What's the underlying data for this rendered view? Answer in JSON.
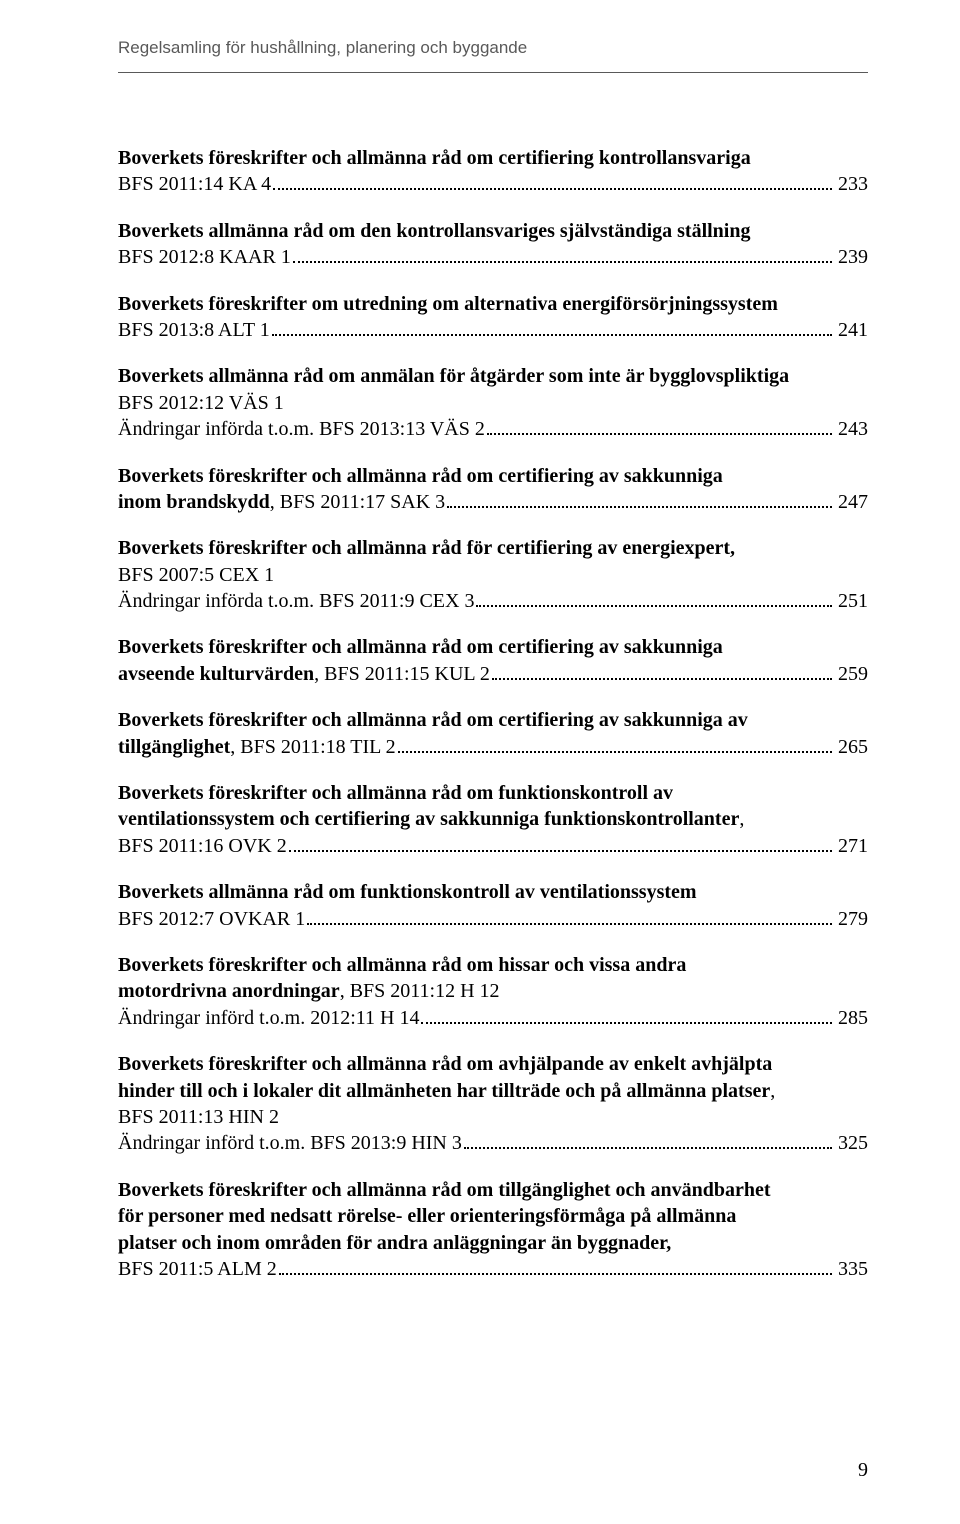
{
  "header": "Regelsamling för hushållning, planering och byggande",
  "entries": [
    {
      "title": "Boverkets föreskrifter och allmänna råd om certifiering kontrollansvariga",
      "ref": "BFS 2011:14 KA 4",
      "page": "233"
    },
    {
      "title": "Boverkets allmänna råd om den kontrollansvariges självständiga ställning",
      "ref": "BFS 2012:8 KAAR 1",
      "page": "239"
    },
    {
      "title": "Boverkets föreskrifter om utredning om alternativa energiförsörjningssystem",
      "ref": "BFS 2013:8 ALT 1",
      "page": "241"
    },
    {
      "title": "Boverkets allmänna råd om anmälan för åtgärder som inte är bygglovspliktiga",
      "ref": "BFS 2012:12 VÄS 1",
      "sub": "Ändringar införda t.o.m. BFS 2013:13 VÄS 2",
      "page": "243"
    },
    {
      "title": "Boverkets föreskrifter och allmänna råd om certifiering av sakkunniga",
      "title2": "inom brandskydd",
      "refInline": ", BFS 2011:17 SAK 3",
      "page": "247"
    },
    {
      "title": "Boverkets föreskrifter och allmänna råd för certifiering av energiexpert,",
      "ref": "BFS 2007:5 CEX 1",
      "sub": "Ändringar införda t.o.m. BFS 2011:9 CEX 3",
      "page": "251"
    },
    {
      "title": "Boverkets föreskrifter och allmänna råd om certifiering av sakkunniga",
      "title2": "avseende kulturvärden",
      "refInline": ", BFS 2011:15 KUL 2",
      "page": "259"
    },
    {
      "title": "Boverkets föreskrifter och allmänna råd om certifiering av sakkunniga av",
      "title2": "tillgänglighet",
      "refInline": ", BFS 2011:18 TIL 2",
      "page": "265"
    },
    {
      "title": "Boverkets föreskrifter och allmänna råd om funktionskontroll av",
      "title2b": "ventilationssystem och certifiering av sakkunniga funktionskontrollanter",
      "titleComma": ",",
      "ref": "BFS 2011:16 OVK 2",
      "page": "271"
    },
    {
      "title": "Boverkets allmänna råd om funktionskontroll av ventilationssystem",
      "ref": "BFS 2012:7 OVKAR 1",
      "page": "279"
    },
    {
      "title": "Boverkets föreskrifter och allmänna råd om hissar och vissa andra",
      "title2": "motordrivna anordningar",
      "refInlineNoRef": ", BFS 2011:12 H 12",
      "sub": "Ändringar införd t.o.m. 2012:11 H 14",
      "page": "285"
    },
    {
      "title": "Boverkets föreskrifter och allmänna råd om avhjälpande av enkelt avhjälpta",
      "title2b": "hinder till och i lokaler dit allmänheten har tillträde och på allmänna platser",
      "titleComma": ",",
      "ref": "BFS 2011:13 HIN 2",
      "sub": "Ändringar införd t.o.m. BFS 2013:9 HIN 3",
      "page": "325"
    },
    {
      "title": "Boverkets föreskrifter och allmänna råd om tillgänglighet och användbarhet",
      "title2b": "för personer med nedsatt rörelse- eller orienteringsförmåga på allmänna",
      "title3b": "platser och inom områden för andra anläggningar än byggnader,",
      "ref": "BFS 2011:5 ALM 2",
      "page": "335"
    }
  ],
  "footerPage": "9"
}
